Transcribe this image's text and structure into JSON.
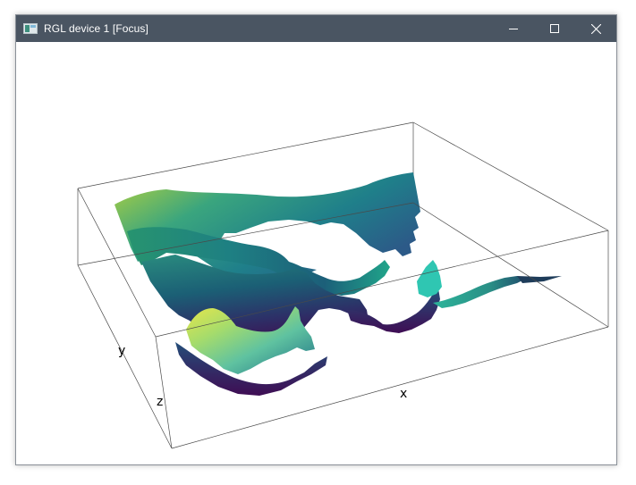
{
  "window": {
    "title": "RGL device 1 [Focus]",
    "app_icon": "rgl-window-icon",
    "titlebar_color": "#4a5562",
    "controls": {
      "minimize_icon": "minimize-icon",
      "maximize_icon": "maximize-icon",
      "close_icon": "close-icon"
    }
  },
  "plot": {
    "type": "3d-surface",
    "colormap": "viridis",
    "axis_labels": {
      "x": "x",
      "y": "y",
      "z": "z"
    }
  }
}
